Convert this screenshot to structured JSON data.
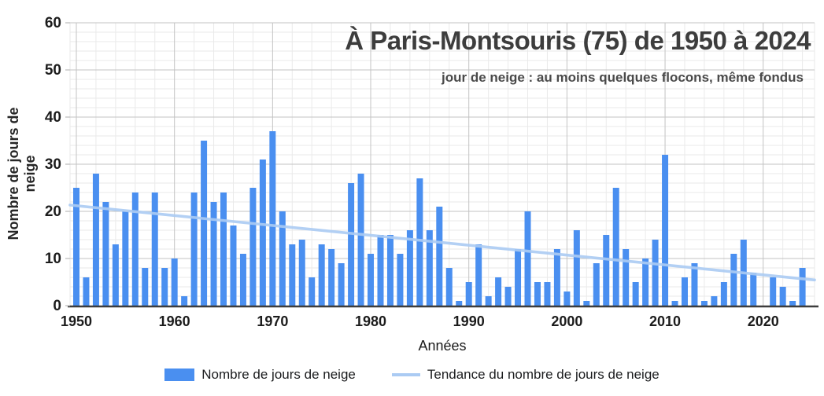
{
  "title": "À Paris-Montsouris (75) de 1950 à 2024",
  "subtitle": "jour de neige : au moins quelques flocons, même fondus",
  "axes": {
    "y_label": "Nombre de jours de neige",
    "x_label": "Années",
    "y_ticks": [
      0,
      10,
      20,
      30,
      40,
      50,
      60
    ],
    "x_ticks": [
      1950,
      1960,
      1970,
      1980,
      1990,
      2000,
      2010,
      2020
    ]
  },
  "legend": {
    "bars_label": "Nombre de jours de neige",
    "trend_label": "Tendance du nombre de jours de neige"
  },
  "colors": {
    "bar": "#4a8ff0",
    "trend": "#abcbf3",
    "axis_line": "#3d3d3d",
    "grid_major": "#c3c3c3",
    "grid_minor": "#eaeaea",
    "tick_label": "#1c1c1c",
    "title": "#3d3d3d"
  },
  "chart_data": {
    "type": "bar",
    "title": "À Paris-Montsouris (75) de 1950 à 2024",
    "subtitle": "jour de neige : au moins quelques flocons, même fondus",
    "xlabel": "Années",
    "ylabel": "Nombre de jours de neige",
    "ylim": [
      0,
      60
    ],
    "xlim": [
      1950,
      2024
    ],
    "grid": true,
    "legend_position": "bottom",
    "x": [
      1950,
      1951,
      1952,
      1953,
      1954,
      1955,
      1956,
      1957,
      1958,
      1959,
      1960,
      1961,
      1962,
      1963,
      1964,
      1965,
      1966,
      1967,
      1968,
      1969,
      1970,
      1971,
      1972,
      1973,
      1974,
      1975,
      1976,
      1977,
      1978,
      1979,
      1980,
      1981,
      1982,
      1983,
      1984,
      1985,
      1986,
      1987,
      1988,
      1989,
      1990,
      1991,
      1992,
      1993,
      1994,
      1995,
      1996,
      1997,
      1998,
      1999,
      2000,
      2001,
      2002,
      2003,
      2004,
      2005,
      2006,
      2007,
      2008,
      2009,
      2010,
      2011,
      2012,
      2013,
      2014,
      2015,
      2016,
      2017,
      2018,
      2019,
      2020,
      2021,
      2022,
      2023,
      2024
    ],
    "series": [
      {
        "name": "Nombre de jours de neige",
        "type": "bar",
        "values": [
          25,
          6,
          28,
          22,
          13,
          20,
          24,
          8,
          24,
          8,
          10,
          2,
          24,
          35,
          22,
          24,
          17,
          11,
          25,
          31,
          37,
          20,
          13,
          14,
          6,
          13,
          12,
          9,
          26,
          28,
          11,
          15,
          15,
          11,
          16,
          27,
          16,
          21,
          8,
          1,
          5,
          13,
          2,
          6,
          4,
          12,
          20,
          5,
          5,
          12,
          3,
          16,
          1,
          9,
          15,
          25,
          12,
          5,
          10,
          14,
          32,
          1,
          6,
          9,
          1,
          2,
          5,
          11,
          14,
          7,
          0,
          6,
          4,
          1,
          8
        ]
      },
      {
        "name": "Tendance du nombre de jours de neige",
        "type": "line",
        "trend": {
          "start_year": 1950,
          "start_value": 21.2,
          "end_year": 2024,
          "end_value": 5.7
        }
      }
    ]
  }
}
